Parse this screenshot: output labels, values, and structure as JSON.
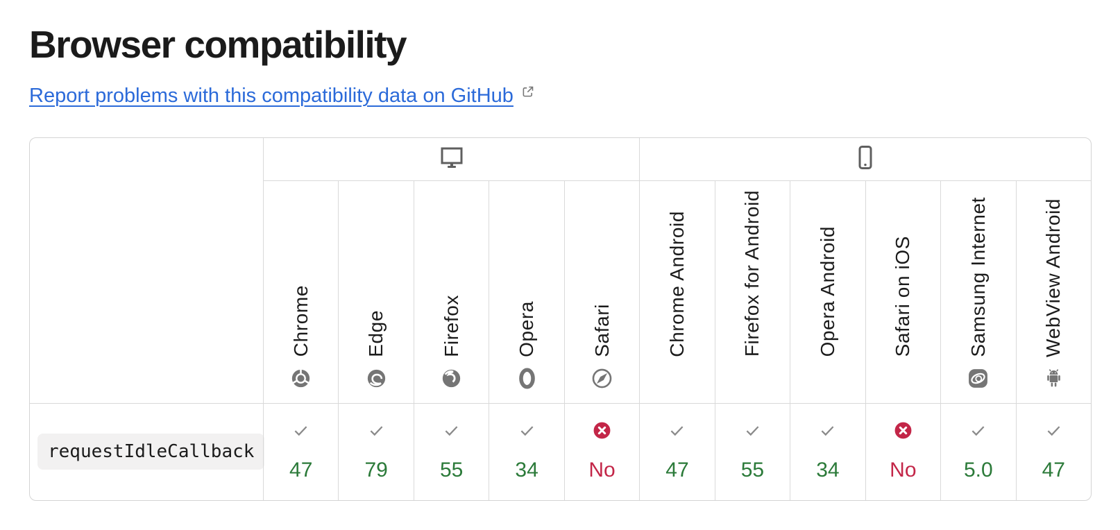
{
  "page": {
    "title": "Browser compatibility",
    "report_link": {
      "label": "Report problems with this compatibility data on GitHub"
    }
  },
  "colors": {
    "link_blue": "#2b6ad9",
    "supported_green": "#2b7a39",
    "unsupported_red": "#c32648",
    "icon_gray": "#757575",
    "border_gray": "#d9d9d9"
  },
  "table": {
    "groups": [
      {
        "id": "desktop",
        "icon": "desktop-icon",
        "span": 5
      },
      {
        "id": "mobile",
        "icon": "mobile-icon",
        "span": 6
      }
    ],
    "browsers": [
      {
        "id": "chrome",
        "label": "Chrome"
      },
      {
        "id": "edge",
        "label": "Edge"
      },
      {
        "id": "firefox",
        "label": "Firefox"
      },
      {
        "id": "opera",
        "label": "Opera"
      },
      {
        "id": "safari",
        "label": "Safari"
      },
      {
        "id": "chrome-android",
        "label": "Chrome Android"
      },
      {
        "id": "firefox-android",
        "label": "Firefox for Android"
      },
      {
        "id": "opera-android",
        "label": "Opera Android"
      },
      {
        "id": "safari-ios",
        "label": "Safari on iOS"
      },
      {
        "id": "samsung",
        "label": "Samsung Internet"
      },
      {
        "id": "webview",
        "label": "WebView Android"
      }
    ],
    "rows": [
      {
        "feature": "requestIdleCallback",
        "support": [
          {
            "browser": "chrome",
            "status": "yes",
            "version": "47"
          },
          {
            "browser": "edge",
            "status": "yes",
            "version": "79"
          },
          {
            "browser": "firefox",
            "status": "yes",
            "version": "55"
          },
          {
            "browser": "opera",
            "status": "yes",
            "version": "34"
          },
          {
            "browser": "safari",
            "status": "no",
            "version": "No"
          },
          {
            "browser": "chrome-android",
            "status": "yes",
            "version": "47"
          },
          {
            "browser": "firefox-android",
            "status": "yes",
            "version": "55"
          },
          {
            "browser": "opera-android",
            "status": "yes",
            "version": "34"
          },
          {
            "browser": "safari-ios",
            "status": "no",
            "version": "No"
          },
          {
            "browser": "samsung",
            "status": "yes",
            "version": "5.0"
          },
          {
            "browser": "webview",
            "status": "yes",
            "version": "47"
          }
        ]
      }
    ]
  }
}
